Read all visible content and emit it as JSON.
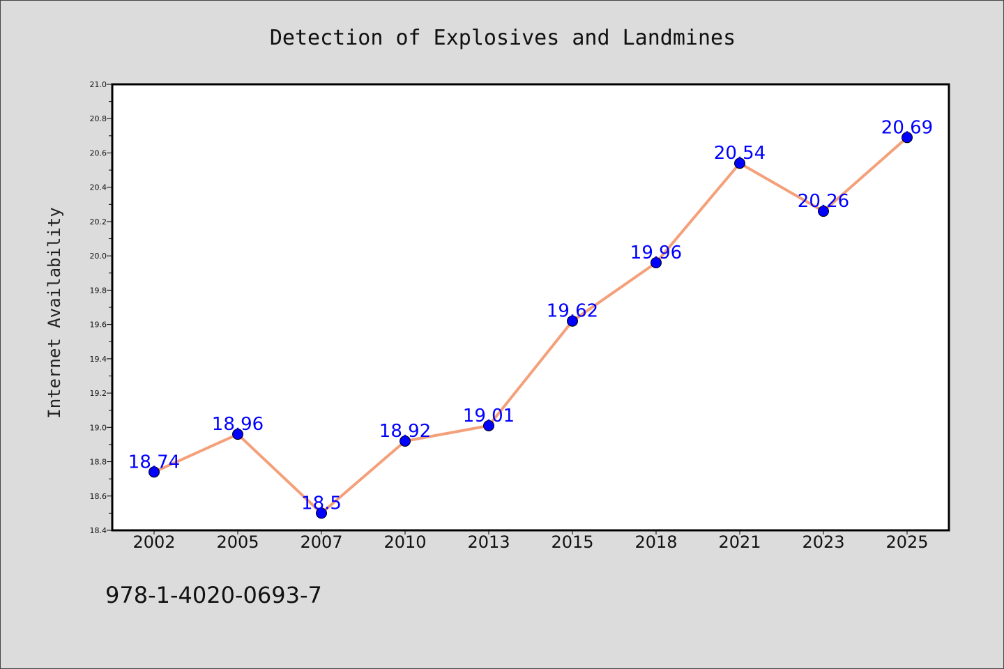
{
  "chart_data": {
    "type": "line",
    "title": "Detection of Explosives and Landmines",
    "xlabel": "",
    "ylabel": "Internet Availability",
    "categories": [
      "2002",
      "2005",
      "2007",
      "2010",
      "2013",
      "2015",
      "2018",
      "2021",
      "2023",
      "2025"
    ],
    "series": [
      {
        "values": [
          18.74,
          18.96,
          18.5,
          18.92,
          19.01,
          19.62,
          19.96,
          20.54,
          20.26,
          20.69
        ],
        "labels": [
          "18.74",
          "18.96",
          "18.5",
          "18.92",
          "19.01",
          "19.62",
          "19.96",
          "20.54",
          "20.26",
          "20.69"
        ],
        "line_color": "#f4a07a",
        "marker_color": "#0000ff"
      }
    ],
    "ylim": [
      18.4,
      21.0
    ],
    "yticks": [
      "18.4",
      "18.6",
      "18.8",
      "19.0",
      "19.2",
      "19.4",
      "19.6",
      "19.8",
      "20.0",
      "20.2",
      "20.4",
      "20.6",
      "20.8",
      "21.0"
    ],
    "grid": false,
    "label_color": "#0000ff"
  },
  "footer": {
    "text": "978-1-4020-0693-7"
  },
  "colors": {
    "background": "#dcdcdc",
    "plot_background": "#ffffff"
  }
}
